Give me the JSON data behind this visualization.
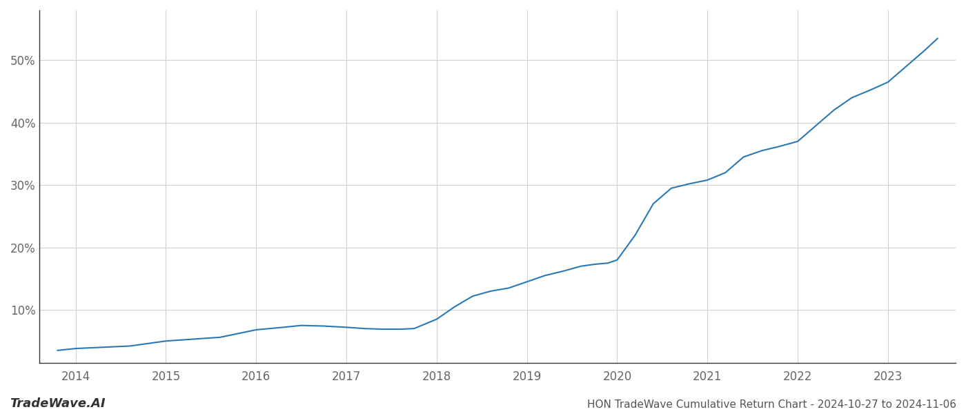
{
  "x": [
    2013.8,
    2014.0,
    2014.3,
    2014.6,
    2015.0,
    2015.3,
    2015.6,
    2016.0,
    2016.3,
    2016.5,
    2016.75,
    2017.0,
    2017.2,
    2017.4,
    2017.6,
    2017.75,
    2018.0,
    2018.2,
    2018.4,
    2018.6,
    2018.8,
    2019.0,
    2019.2,
    2019.4,
    2019.6,
    2019.75,
    2019.9,
    2020.0,
    2020.2,
    2020.4,
    2020.6,
    2020.8,
    2021.0,
    2021.2,
    2021.4,
    2021.6,
    2021.8,
    2022.0,
    2022.2,
    2022.4,
    2022.6,
    2022.8,
    2023.0,
    2023.2,
    2023.4,
    2023.55
  ],
  "y": [
    3.5,
    3.8,
    4.0,
    4.2,
    5.0,
    5.3,
    5.6,
    6.8,
    7.2,
    7.5,
    7.4,
    7.2,
    7.0,
    6.9,
    6.9,
    7.0,
    8.5,
    10.5,
    12.2,
    13.0,
    13.5,
    14.5,
    15.5,
    16.2,
    17.0,
    17.3,
    17.5,
    18.0,
    22.0,
    27.0,
    29.5,
    30.2,
    30.8,
    32.0,
    34.5,
    35.5,
    36.2,
    37.0,
    39.5,
    42.0,
    44.0,
    45.2,
    46.5,
    49.0,
    51.5,
    53.5
  ],
  "line_color": "#2878b5",
  "line_width": 1.5,
  "title": "HON TradeWave Cumulative Return Chart - 2024-10-27 to 2024-11-06",
  "watermark": "TradeWave.AI",
  "xlim": [
    2013.6,
    2023.75
  ],
  "ylim": [
    1.5,
    58
  ],
  "xtick_labels": [
    "2014",
    "2015",
    "2016",
    "2017",
    "2018",
    "2019",
    "2020",
    "2021",
    "2022",
    "2023"
  ],
  "xtick_positions": [
    2014,
    2015,
    2016,
    2017,
    2018,
    2019,
    2020,
    2021,
    2022,
    2023
  ],
  "ytick_values": [
    10,
    20,
    30,
    40,
    50
  ],
  "background_color": "#ffffff",
  "grid_color": "#cccccc",
  "title_fontsize": 11,
  "tick_fontsize": 12,
  "watermark_fontsize": 13
}
